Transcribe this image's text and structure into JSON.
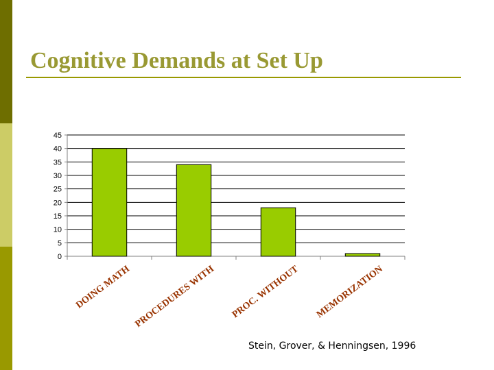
{
  "slide": {
    "title": "Cognitive Demands at Set Up",
    "citation": "Stein, Grover, & Henningsen, 1996"
  },
  "colors": {
    "title": "#999933",
    "bar_fill": "#99cc00",
    "category_label": "#993300",
    "band_dark": "#6e6e00",
    "band_light": "#cccc66",
    "band_mid": "#999900"
  },
  "chart_data": {
    "type": "bar",
    "title": "",
    "xlabel": "",
    "ylabel": "",
    "categories": [
      "DOING MATH",
      "PROCEDURES WITH",
      "PROC. WITHOUT",
      "MEMORIZATION"
    ],
    "values": [
      40,
      34,
      18,
      1
    ],
    "ylim": [
      0,
      45
    ],
    "yticks": [
      0,
      5,
      10,
      15,
      20,
      25,
      30,
      35,
      40,
      45
    ],
    "grid": true,
    "legend": "none"
  }
}
